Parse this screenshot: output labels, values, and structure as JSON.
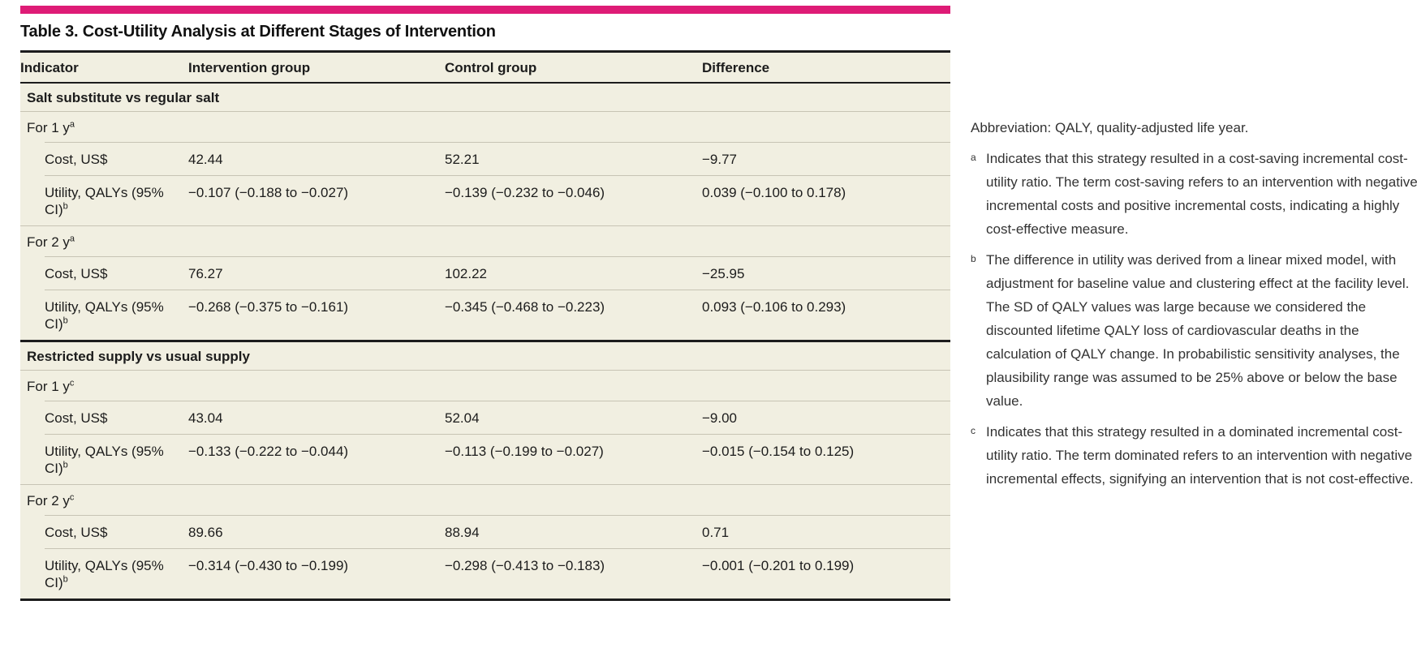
{
  "page": {
    "accent_color": "#de1b76",
    "table_background": "#f1efe1"
  },
  "table": {
    "title": "Table 3. Cost-Utility Analysis at Different Stages of Intervention",
    "columns": [
      "Indicator",
      "Intervention group",
      "Control group",
      "Difference"
    ],
    "sections": [
      {
        "header": "Salt substitute vs regular salt",
        "subsections": [
          {
            "label": "For 1 y",
            "label_sup": "a",
            "rows": [
              {
                "indicator": "Cost, US$",
                "indicator_sup": "",
                "intervention": "42.44",
                "control": "52.21",
                "difference": "−9.77"
              },
              {
                "indicator": "Utility, QALYs (95% CI)",
                "indicator_sup": "b",
                "intervention": "−0.107 (−0.188 to −0.027)",
                "control": "−0.139 (−0.232 to −0.046)",
                "difference": "0.039 (−0.100 to 0.178)"
              }
            ]
          },
          {
            "label": "For 2 y",
            "label_sup": "a",
            "rows": [
              {
                "indicator": "Cost, US$",
                "indicator_sup": "",
                "intervention": "76.27",
                "control": "102.22",
                "difference": "−25.95"
              },
              {
                "indicator": "Utility, QALYs (95% CI)",
                "indicator_sup": "b",
                "intervention": "−0.268 (−0.375 to −0.161)",
                "control": "−0.345 (−0.468 to −0.223)",
                "difference": "0.093 (−0.106 to 0.293)"
              }
            ]
          }
        ]
      },
      {
        "header": "Restricted supply vs usual supply",
        "subsections": [
          {
            "label": "For 1 y",
            "label_sup": "c",
            "rows": [
              {
                "indicator": "Cost, US$",
                "indicator_sup": "",
                "intervention": "43.04",
                "control": "52.04",
                "difference": "−9.00"
              },
              {
                "indicator": "Utility, QALYs (95% CI)",
                "indicator_sup": "b",
                "intervention": "−0.133 (−0.222 to −0.044)",
                "control": "−0.113 (−0.199 to −0.027)",
                "difference": "−0.015 (−0.154 to 0.125)"
              }
            ]
          },
          {
            "label": "For 2 y",
            "label_sup": "c",
            "rows": [
              {
                "indicator": "Cost, US$",
                "indicator_sup": "",
                "intervention": "89.66",
                "control": "88.94",
                "difference": "0.71"
              },
              {
                "indicator": "Utility, QALYs (95% CI)",
                "indicator_sup": "b",
                "intervention": "−0.314 (−0.430 to −0.199)",
                "control": "−0.298 (−0.413 to −0.183)",
                "difference": "−0.001 (−0.201 to 0.199)"
              }
            ]
          }
        ]
      }
    ]
  },
  "footnotes": {
    "abbreviation": "Abbreviation: QALY, quality-adjusted life year.",
    "items": [
      {
        "marker": "a",
        "text": "Indicates that this strategy resulted in a cost-saving incremental cost-utility ratio. The term cost-saving refers to an intervention with negative incremental costs and positive incremental costs, indicating a highly cost-effective measure."
      },
      {
        "marker": "b",
        "text": "The difference in utility was derived from a linear mixed model, with adjustment for baseline value and clustering effect at the facility level. The SD of QALY values was large because we considered the discounted lifetime QALY loss of cardiovascular deaths in the calculation of QALY change. In probabilistic sensitivity analyses, the plausibility range was assumed to be 25% above or below the base value."
      },
      {
        "marker": "c",
        "text": "Indicates that this strategy resulted in a dominated incremental cost-utility ratio. The term dominated refers to an intervention with negative incremental effects, signifying an intervention that is not cost-effective."
      }
    ]
  }
}
